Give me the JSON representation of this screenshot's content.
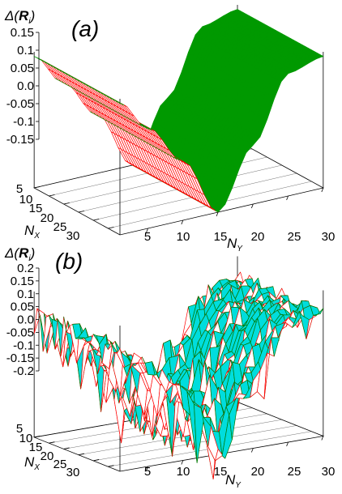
{
  "chart_data": [
    {
      "type": "surface",
      "panel_label": "(a)",
      "zlabel": "Δ(R_i)",
      "zlabel_parts": {
        "prefix": "Δ(",
        "symbol": "R",
        "sub": "i",
        "suffix": ")"
      },
      "xlabel_parts": {
        "symbol": "N",
        "sub": "X"
      },
      "ylabel_parts": {
        "symbol": "N",
        "sub": "Y"
      },
      "x_ticks": [
        "5",
        "10",
        "15",
        "20",
        "25",
        "30"
      ],
      "y_ticks": [
        "5",
        "10",
        "15",
        "20",
        "25",
        "30"
      ],
      "z_ticks": [
        "0.15",
        "0.1",
        "0.05",
        "0.0",
        "-0.05",
        "-0.1",
        "-0.15"
      ],
      "z_tick_values": [
        0.15,
        0.1,
        0.05,
        0.0,
        -0.05,
        -0.1,
        -0.15
      ],
      "nx_range": [
        1,
        30
      ],
      "ny_range": [
        1,
        30
      ],
      "zlim": [
        -0.15,
        0.15
      ],
      "profile_ny": [
        1,
        5,
        10,
        15,
        20,
        25,
        30
      ],
      "profile_delta": [
        0.14,
        0.07,
        -0.02,
        -0.15,
        -0.02,
        0.12,
        0.14
      ],
      "noisy": false,
      "colors": {
        "top_mesh": "#ff0000",
        "underside": "#009900"
      }
    },
    {
      "type": "surface",
      "panel_label": "(b)",
      "zlabel": "Δ(R_i)",
      "zlabel_parts": {
        "prefix": "Δ(",
        "symbol": "R",
        "sub": "i",
        "suffix": ")"
      },
      "xlabel_parts": {
        "symbol": "N",
        "sub": "X"
      },
      "ylabel_parts": {
        "symbol": "N",
        "sub": "Y"
      },
      "x_ticks": [
        "5",
        "10",
        "15",
        "20",
        "25",
        "30"
      ],
      "y_ticks": [
        "5",
        "10",
        "15",
        "20",
        "25",
        "30"
      ],
      "z_ticks": [
        "0.2",
        "0.15",
        "0.1",
        "0.05",
        "0.0",
        "-0.05",
        "-0.1",
        "-0.15",
        "-0.2"
      ],
      "z_tick_values": [
        0.2,
        0.15,
        0.1,
        0.05,
        0.0,
        -0.05,
        -0.1,
        -0.15,
        -0.2
      ],
      "nx_range": [
        1,
        30
      ],
      "ny_range": [
        1,
        30
      ],
      "zlim": [
        -0.2,
        0.2
      ],
      "profile_ny": [
        1,
        5,
        10,
        15,
        20,
        25,
        30
      ],
      "profile_delta": [
        0.14,
        0.07,
        -0.03,
        -0.17,
        -0.03,
        0.12,
        0.14
      ],
      "noisy": true,
      "colors": {
        "top_mesh": "#ff0000",
        "underside": "#00dddd",
        "underside_edge": "#007700"
      }
    }
  ]
}
